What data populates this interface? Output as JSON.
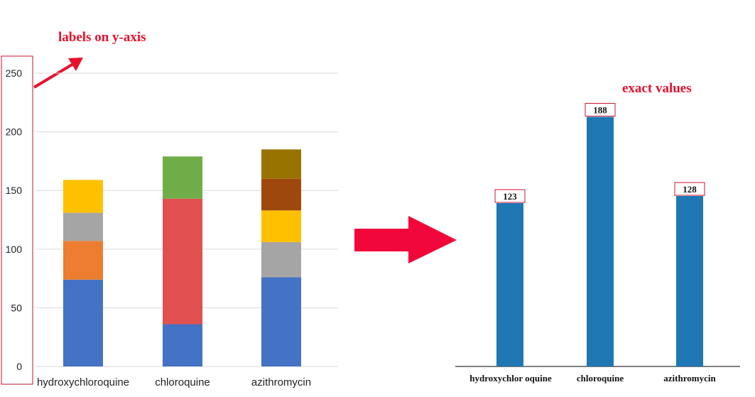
{
  "annotations": {
    "labels_on_y_axis": "labels on y-axis",
    "exact_values": "exact values",
    "accent_color": "#e8112d"
  },
  "chart_data": [
    {
      "type": "bar",
      "stacked": true,
      "categories": [
        "hydroxychloroquine",
        "chloroquine",
        "azithromycin"
      ],
      "ylim": [
        0,
        250
      ],
      "yticks": [
        0,
        50,
        100,
        150,
        200,
        250
      ],
      "ytick_labels": [
        "0",
        "50",
        "100",
        "150",
        "200",
        "250"
      ],
      "grid": true,
      "segments": [
        [
          {
            "value": 74,
            "color": "#4472c4"
          },
          {
            "value": 33,
            "color": "#ed7d31"
          },
          {
            "value": 24,
            "color": "#a5a5a5"
          },
          {
            "value": 28,
            "color": "#ffc000"
          }
        ],
        [
          {
            "value": 36,
            "color": "#4472c4"
          },
          {
            "value": 107,
            "color": "#e05050"
          },
          {
            "value": 36,
            "color": "#70ad47"
          }
        ],
        [
          {
            "value": 76,
            "color": "#4472c4"
          },
          {
            "value": 30,
            "color": "#a5a5a5"
          },
          {
            "value": 27,
            "color": "#ffc000"
          },
          {
            "value": 27,
            "color": "#9e480e"
          },
          {
            "value": 25,
            "color": "#997300"
          }
        ]
      ]
    },
    {
      "type": "bar",
      "categories": [
        "hydroxychlor oquine",
        "chloroquine",
        "azithromycin"
      ],
      "values": [
        123,
        188,
        128
      ],
      "value_labels": [
        "123",
        "188",
        "128"
      ],
      "color": "#1f77b4",
      "grid": false
    }
  ]
}
